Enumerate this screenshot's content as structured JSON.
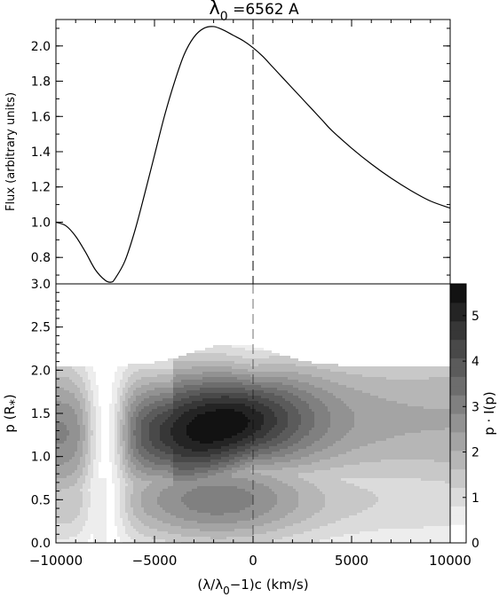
{
  "chart_data": [
    {
      "type": "line",
      "title": "λ0 =6562 A",
      "title_parts": {
        "lambda": "λ",
        "sub": "0",
        "rest": " =6562 A"
      },
      "ylabel": "Flux (arbitrary units)",
      "xlim": [
        -10000,
        10000
      ],
      "ylim": [
        0.65,
        2.15
      ],
      "yticks": [
        "0.8",
        "1.0",
        "1.2",
        "1.4",
        "1.6",
        "1.8",
        "2.0"
      ],
      "ytick_values": [
        0.8,
        1.0,
        1.2,
        1.4,
        1.6,
        1.8,
        2.0
      ],
      "vline": {
        "x": 0,
        "style": "dashed"
      },
      "series": [
        {
          "x": [
            -10000,
            -9500,
            -9000,
            -8500,
            -8000,
            -7500,
            -7200,
            -7000,
            -6500,
            -6000,
            -5500,
            -5000,
            -4500,
            -4000,
            -3500,
            -3000,
            -2500,
            -2000,
            -1500,
            -1000,
            -500,
            0,
            500,
            1000,
            1500,
            2000,
            2500,
            3000,
            3500,
            4000,
            5000,
            6000,
            7000,
            8000,
            9000,
            10000
          ],
          "y": [
            1.0,
            0.98,
            0.92,
            0.83,
            0.73,
            0.67,
            0.66,
            0.68,
            0.78,
            0.95,
            1.16,
            1.38,
            1.6,
            1.79,
            1.95,
            2.05,
            2.1,
            2.11,
            2.09,
            2.06,
            2.03,
            1.99,
            1.94,
            1.88,
            1.82,
            1.76,
            1.7,
            1.64,
            1.58,
            1.52,
            1.42,
            1.33,
            1.25,
            1.18,
            1.12,
            1.08
          ]
        }
      ]
    },
    {
      "type": "heatmap",
      "ylabel": "p (R*)",
      "ylabel_parts": {
        "text": "p (R",
        "sub": "*",
        "close": ")"
      },
      "xlabel": "(λ/λ0−1)c (km/s)",
      "xlabel_parts": {
        "open": "(λ/λ",
        "sub": "0",
        "rest": "−1)c (km/s)"
      },
      "xlim": [
        -10000,
        10000
      ],
      "ylim": [
        0.0,
        3.0
      ],
      "xticks": [
        "−10000",
        "−5000",
        "0",
        "5000",
        "10000"
      ],
      "xtick_values": [
        -10000,
        -5000,
        0,
        5000,
        10000
      ],
      "yticks": [
        "0.0",
        "0.5",
        "1.0",
        "1.5",
        "2.0",
        "2.5",
        "3.0"
      ],
      "ytick_values": [
        0.0,
        0.5,
        1.0,
        1.5,
        2.0,
        2.5,
        3.0
      ],
      "colorbar": {
        "label": "p · I(p)",
        "range": [
          0,
          5.7
        ],
        "ticks": [
          "0",
          "1",
          "2",
          "3",
          "4",
          "5"
        ],
        "tick_values": [
          0,
          1,
          2,
          3,
          4,
          5
        ],
        "colormap": "white-to-black"
      },
      "vline": {
        "x": 0,
        "style": "dashed"
      },
      "features": {
        "peak": {
          "x": -1800,
          "p": 1.35,
          "value": 5.7
        },
        "band_center_p": 1.35,
        "absorption_trough_x": -7500,
        "occulted_bump": {
          "x": -7800,
          "p_top": 0.75
        }
      }
    }
  ]
}
